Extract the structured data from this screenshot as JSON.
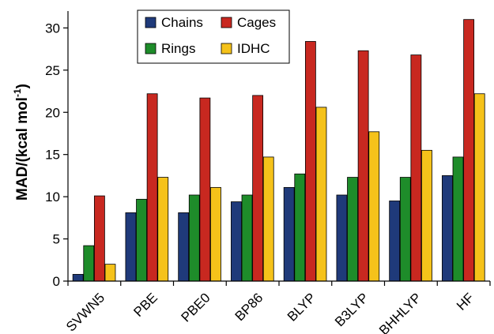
{
  "chart_data": {
    "type": "bar",
    "categories": [
      "SVWN5",
      "PBE",
      "PBE0",
      "BP86",
      "BLYP",
      "B3LYP",
      "BHHLYP",
      "HF"
    ],
    "series": [
      {
        "name": "Chains",
        "color": "#1F3A7A",
        "values": [
          0.8,
          8.1,
          8.1,
          9.4,
          11.1,
          10.2,
          9.5,
          12.5
        ]
      },
      {
        "name": "Rings",
        "color": "#1E8C2A",
        "values": [
          4.2,
          9.7,
          10.2,
          10.2,
          12.7,
          12.3,
          12.3,
          14.7
        ]
      },
      {
        "name": "Cages",
        "color": "#C82820",
        "values": [
          10.1,
          22.2,
          21.7,
          22.0,
          28.4,
          27.3,
          26.8,
          31.0
        ]
      },
      {
        "name": "IDHC",
        "color": "#F5C21A",
        "values": [
          2.0,
          12.3,
          11.1,
          14.7,
          20.6,
          17.7,
          15.5,
          22.2
        ]
      }
    ],
    "ylabel_main": "MAD/(kcal mol",
    "ylabel_sup": "-1",
    "ylabel_close": ")",
    "xlabel": "",
    "ylim": [
      0,
      32
    ],
    "yticks": [
      0,
      5,
      10,
      15,
      20,
      25,
      30
    ],
    "legend_position": "top-left",
    "grid": false
  }
}
